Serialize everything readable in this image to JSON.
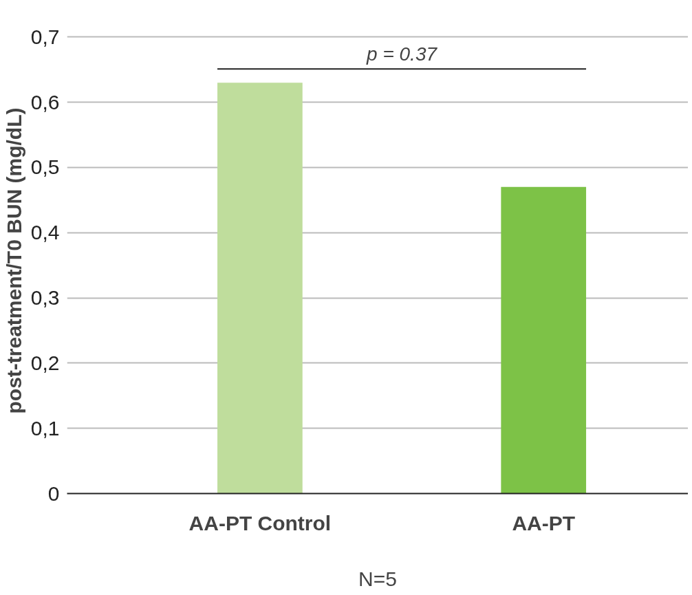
{
  "chart_data": {
    "type": "bar",
    "categories": [
      "AA-PT Control",
      "AA-PT"
    ],
    "series": [
      {
        "colors": [
          "#bfdd9c",
          "#7dc247"
        ],
        "values": [
          0.63,
          0.47
        ]
      }
    ],
    "ylabel": "post-treatment/T0 BUN (mg/dL)",
    "xlabel": "N=5",
    "annotations": [
      "p = 0.37"
    ],
    "ylim": [
      0,
      0.7
    ],
    "yticks": [
      {
        "value": 0,
        "label": "0"
      },
      {
        "value": 0.1,
        "label": "0,1"
      },
      {
        "value": 0.2,
        "label": "0,2"
      },
      {
        "value": 0.3,
        "label": "0,3"
      },
      {
        "value": 0.4,
        "label": "0,4"
      },
      {
        "value": 0.5,
        "label": "0,5"
      },
      {
        "value": 0.6,
        "label": "0,6"
      },
      {
        "value": 0.7,
        "label": "0,7"
      }
    ],
    "grid": "y"
  }
}
